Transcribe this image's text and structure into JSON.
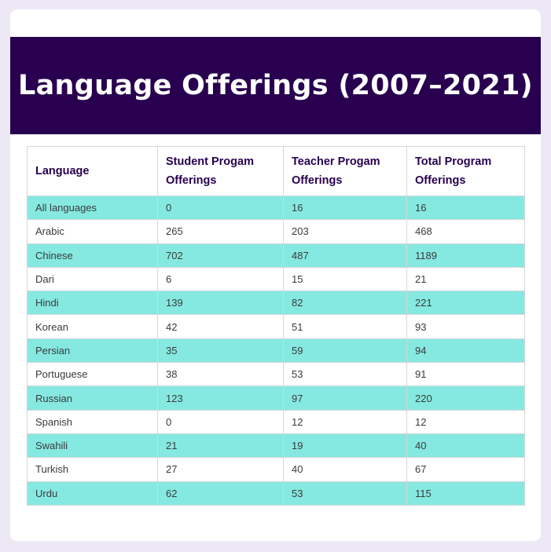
{
  "title": "Language Offerings (2007–2021)",
  "colors": {
    "banner": "#28004f",
    "row_highlight": "#86e9e1",
    "background": "#ece8f6"
  },
  "chart_data": {
    "type": "table",
    "title": "Language Offerings (2007–2021)",
    "columns": [
      "Language",
      "Student Progam Offerings",
      "Teacher Progam Offerings",
      "Total Program Offerings"
    ],
    "rows": [
      [
        "All languages",
        "0",
        "16",
        "16"
      ],
      [
        "Arabic",
        "265",
        "203",
        "468"
      ],
      [
        "Chinese",
        "702",
        "487",
        "1189"
      ],
      [
        "Dari",
        "6",
        "15",
        "21"
      ],
      [
        "Hindi",
        "139",
        "82",
        "221"
      ],
      [
        "Korean",
        "42",
        "51",
        "93"
      ],
      [
        "Persian",
        "35",
        "59",
        "94"
      ],
      [
        "Portuguese",
        "38",
        "53",
        "91"
      ],
      [
        "Russian",
        "123",
        "97",
        "220"
      ],
      [
        "Spanish",
        "0",
        "12",
        "12"
      ],
      [
        "Swahili",
        "21",
        "19",
        "40"
      ],
      [
        "Turkish",
        "27",
        "40",
        "67"
      ],
      [
        "Urdu",
        "62",
        "53",
        "115"
      ]
    ]
  }
}
